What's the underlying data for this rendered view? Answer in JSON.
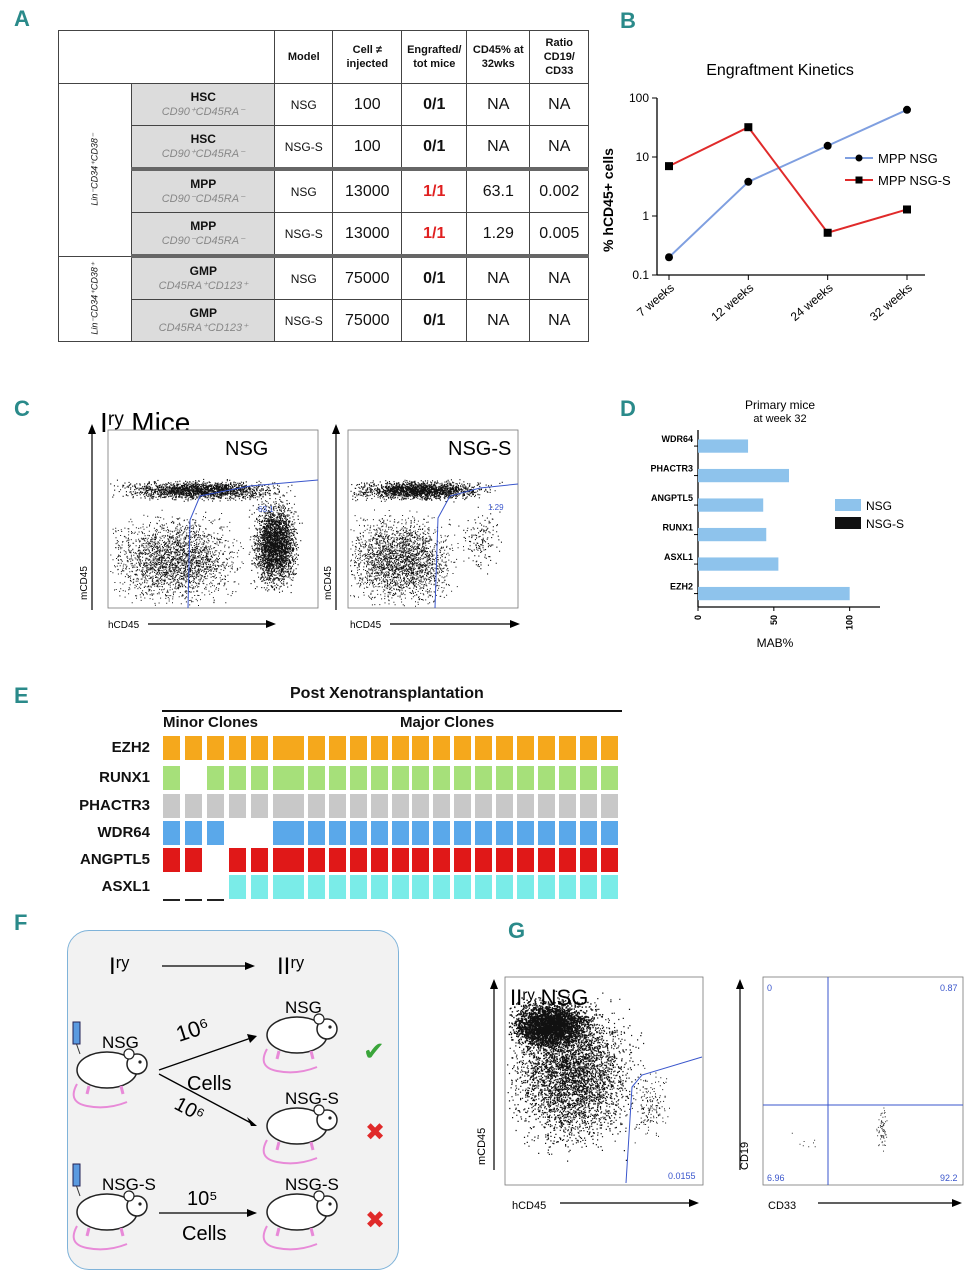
{
  "panels": {
    "A": "A",
    "B": "B",
    "C": "C",
    "D": "D",
    "E": "E",
    "F": "F",
    "G": "G"
  },
  "table": {
    "headers": [
      "Model",
      "Cell ≠ injected",
      "Engrafted/ tot mice",
      "CD45% at 32wks",
      "Ratio CD19/ CD33"
    ],
    "side_labels": [
      "Lin⁻CD34⁺CD38⁻",
      "Lin⁻CD34⁺CD38⁺"
    ],
    "rows": [
      {
        "pop": "HSC",
        "marker": "CD90⁺CD45RA⁻",
        "model": "NSG",
        "cells": "100",
        "eng": "0/1",
        "cd45": "NA",
        "ratio": "NA"
      },
      {
        "pop": "HSC",
        "marker": "CD90⁺CD45RA⁻",
        "model": "NSG-S",
        "cells": "100",
        "eng": "0/1",
        "cd45": "NA",
        "ratio": "NA"
      },
      {
        "pop": "MPP",
        "marker": "CD90⁻CD45RA⁻",
        "model": "NSG",
        "cells": "13000",
        "eng": "1/1",
        "cd45": "63.1",
        "ratio": "0.002"
      },
      {
        "pop": "MPP",
        "marker": "CD90⁻CD45RA⁻",
        "model": "NSG-S",
        "cells": "13000",
        "eng": "1/1",
        "cd45": "1.29",
        "ratio": "0.005"
      },
      {
        "pop": "GMP",
        "marker": "CD45RA⁺CD123⁺",
        "model": "NSG",
        "cells": "75000",
        "eng": "0/1",
        "cd45": "NA",
        "ratio": "NA"
      },
      {
        "pop": "GMP",
        "marker": "CD45RA⁺CD123⁺",
        "model": "NSG-S",
        "cells": "75000",
        "eng": "0/1",
        "cd45": "NA",
        "ratio": "NA"
      }
    ]
  },
  "chart_data": [
    {
      "type": "line",
      "title": "Engraftment Kinetics",
      "ylabel": "% hCD45+ cells",
      "xlabel": "",
      "yscale": "log",
      "ylim": [
        0.1,
        100
      ],
      "yticks": [
        "0.1",
        "1",
        "10",
        "100"
      ],
      "categories": [
        "7 weeks",
        "12 weeks",
        "24 weeks",
        "32 weeks"
      ],
      "series": [
        {
          "name": "MPP NSG",
          "color": "#7f9fe0",
          "values": [
            0.2,
            3.8,
            15.5,
            63.1
          ]
        },
        {
          "name": "MPP NSG-S",
          "color": "#e02a2a",
          "values": [
            7.0,
            32.0,
            0.52,
            1.29
          ]
        }
      ]
    },
    {
      "type": "bar",
      "title": "Primary mice",
      "subtitle": "at week 32",
      "xlabel": "MAB%",
      "xlim": [
        0,
        120
      ],
      "xticks": [
        "0",
        "50",
        "100"
      ],
      "categories": [
        "WDR64",
        "PHACTR3",
        "ANGPTL5",
        "RUNX1",
        "ASXL1",
        "EZH2"
      ],
      "series": [
        {
          "name": "NSG",
          "color": "#8ec3ec",
          "values": [
            33,
            60,
            43,
            45,
            53,
            100
          ]
        },
        {
          "name": "NSG-S",
          "color": "#111111",
          "values": [
            0,
            0,
            0,
            0,
            0,
            0
          ]
        }
      ]
    }
  ],
  "flowC": {
    "title": "Iʳʸ Mice",
    "plots": [
      {
        "label": "NSG",
        "gate": "63.1"
      },
      {
        "label": "NSG-S",
        "gate": "1.29"
      }
    ],
    "xaxis": "hCD45",
    "yaxis": "mCD45"
  },
  "panelE": {
    "title": "Post Xenotransplantation",
    "minor": "Minor Clones",
    "major": "Major Clones",
    "genes": [
      {
        "name": "EZH2",
        "color": "#f5a81c",
        "pattern": [
          1,
          1,
          1,
          1,
          1,
          1,
          1,
          1,
          1,
          1,
          1,
          1,
          1,
          1,
          1,
          1,
          1,
          1,
          1,
          1,
          1,
          1
        ]
      },
      {
        "name": "RUNX1",
        "color": "#a6e07a",
        "pattern": [
          1,
          0,
          1,
          1,
          1,
          1,
          1,
          1,
          1,
          1,
          1,
          1,
          1,
          1,
          1,
          1,
          1,
          1,
          1,
          1,
          1,
          1
        ]
      },
      {
        "name": "PHACTR3",
        "color": "#c8c8c8",
        "pattern": [
          1,
          1,
          1,
          1,
          1,
          1,
          1,
          1,
          1,
          1,
          1,
          1,
          1,
          1,
          1,
          1,
          1,
          1,
          1,
          1,
          1,
          1
        ]
      },
      {
        "name": "WDR64",
        "color": "#5aa8ea",
        "pattern": [
          1,
          1,
          1,
          0,
          0,
          1,
          1,
          1,
          1,
          1,
          1,
          1,
          1,
          1,
          1,
          1,
          1,
          1,
          1,
          1,
          1,
          1
        ]
      },
      {
        "name": "ANGPTL5",
        "color": "#e01818",
        "pattern": [
          1,
          1,
          0,
          1,
          1,
          1,
          1,
          1,
          1,
          1,
          1,
          1,
          1,
          1,
          1,
          1,
          1,
          1,
          1,
          1,
          1,
          1
        ]
      },
      {
        "name": "ASXL1",
        "color": "#7aece8",
        "pattern": [
          2,
          2,
          2,
          1,
          1,
          1,
          1,
          1,
          1,
          1,
          1,
          1,
          1,
          1,
          1,
          1,
          1,
          1,
          1,
          1,
          1,
          1
        ]
      }
    ]
  },
  "panelF": {
    "from": "Iʳʸ",
    "to": "IIʳʸ",
    "mice": [
      "NSG",
      "NSG",
      "NSG-S",
      "NSG-S",
      "NSG-S"
    ],
    "dose1": "10⁶",
    "dose2": "10⁶",
    "dose3": "10⁵",
    "cells": "Cells",
    "check": "✔",
    "cross": "✖"
  },
  "panelG": {
    "title": "IIʳʸ NSG",
    "gate": "0.0155",
    "xaxis": "hCD45",
    "yaxis": "mCD45",
    "quad": {
      "tl": "0",
      "tr": "0.87",
      "bl": "6.96",
      "br": "92.2"
    },
    "qx": "CD33",
    "qy": "CD19"
  }
}
